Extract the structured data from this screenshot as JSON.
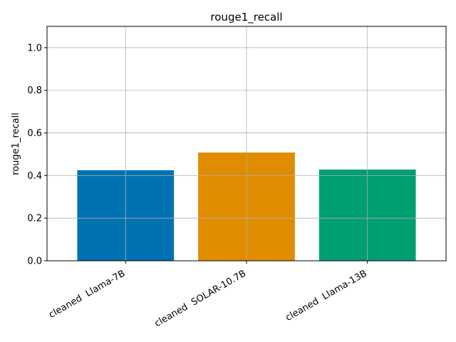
{
  "chart_data": {
    "type": "bar",
    "title": "rouge1_recall",
    "xlabel": "",
    "ylabel": "rouge1_recall",
    "categories": [
      "cleaned  Llama-7B",
      "cleaned  SOLAR-10.7B",
      "cleaned  Llama-13B"
    ],
    "values": [
      0.425,
      0.508,
      0.428
    ],
    "colors": [
      "#0072b2",
      "#e08c00",
      "#009e73"
    ],
    "ylim": [
      0,
      1.1
    ],
    "yticks": [
      "0.0",
      "0.2",
      "0.4",
      "0.6",
      "0.8",
      "1.0"
    ],
    "grid": true,
    "legend": "none"
  }
}
